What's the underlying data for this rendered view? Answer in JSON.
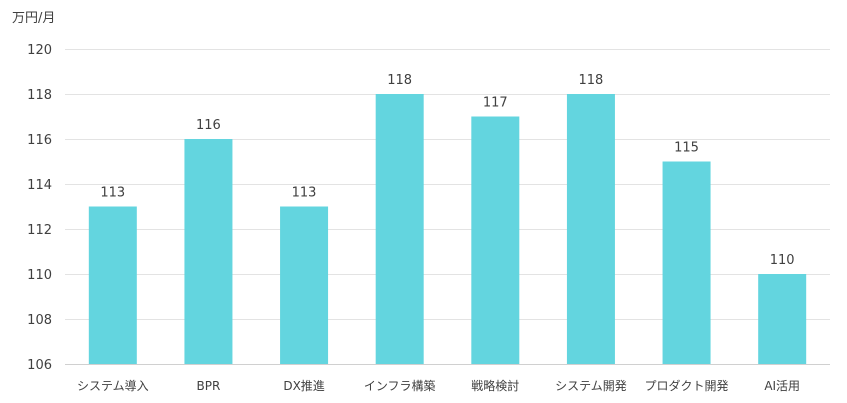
{
  "chart_data": {
    "type": "bar",
    "y_unit_label": "万円/月",
    "categories": [
      "システム導入",
      "BPR",
      "DX推進",
      "インフラ構築",
      "戦略検討",
      "システム開発",
      "プロダクト開発",
      "AI活用"
    ],
    "values": [
      113,
      116,
      113,
      118,
      117,
      118,
      115,
      110
    ],
    "data_labels": [
      "113",
      "116",
      "113",
      "118",
      "117",
      "118",
      "115",
      "110"
    ],
    "ylim": [
      106,
      120
    ],
    "yticks": [
      106,
      108,
      110,
      112,
      114,
      116,
      118,
      120
    ],
    "ytick_labels": [
      "106",
      "108",
      "110",
      "112",
      "114",
      "116",
      "118",
      "120"
    ],
    "grid": true,
    "legend": "none",
    "bar_color": "#63d5df"
  }
}
